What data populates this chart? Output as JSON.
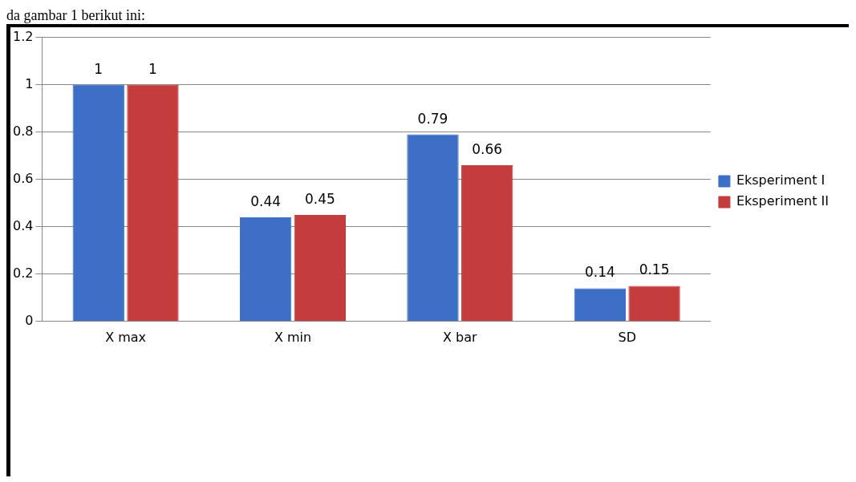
{
  "chart_data": {
    "type": "bar",
    "categories": [
      "X max",
      "X min",
      "X bar",
      "SD"
    ],
    "series": [
      {
        "name": "Eksperiment I",
        "color": "#3d6fc6",
        "values": [
          1,
          0.44,
          0.79,
          0.14
        ]
      },
      {
        "name": "Eksperiment II",
        "color": "#c43c3c",
        "values": [
          1,
          0.45,
          0.66,
          0.15
        ]
      }
    ],
    "ylim": [
      0,
      1.2
    ],
    "yticks": [
      0,
      0.2,
      0.4,
      0.6,
      0.8,
      1,
      1.2
    ],
    "grid": "y",
    "legend": "right",
    "data_labels": true,
    "annotations": [
      "da gambar 1 berikut ini:"
    ]
  }
}
